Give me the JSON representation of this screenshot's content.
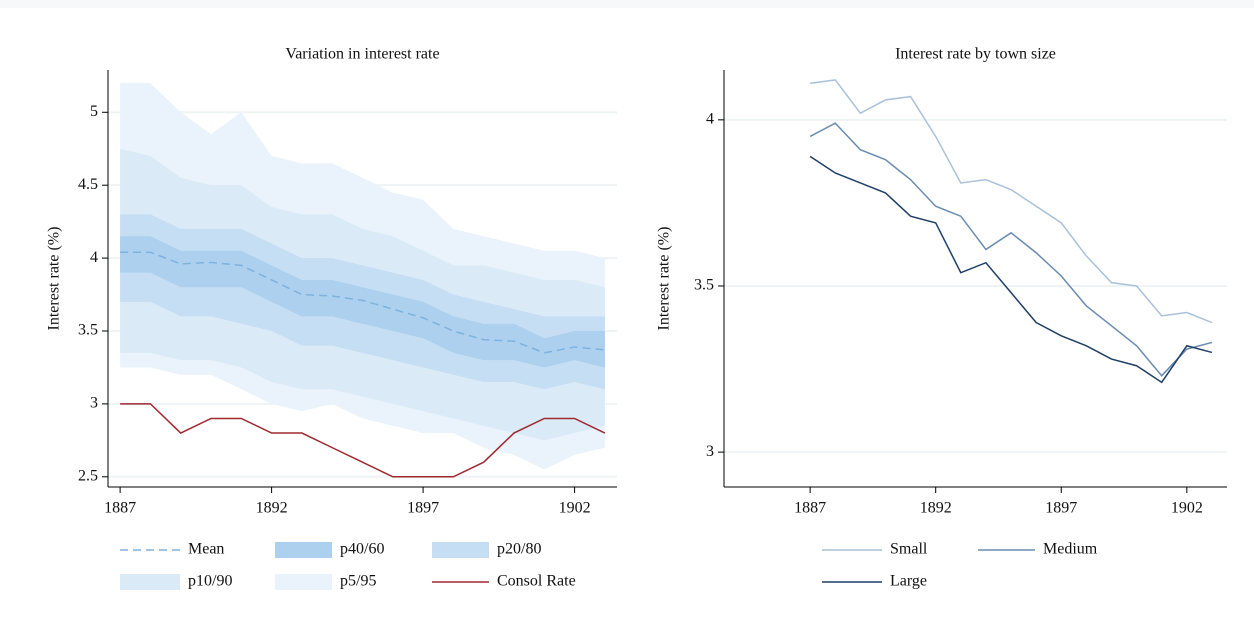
{
  "chart_data": [
    {
      "type": "line",
      "title": "Variation in interest rate",
      "y_label": "Interest rate (%)",
      "x": [
        1887,
        1888,
        1889,
        1890,
        1891,
        1892,
        1893,
        1894,
        1895,
        1896,
        1897,
        1898,
        1899,
        1900,
        1901,
        1902,
        1903
      ],
      "xlim": [
        1886.6,
        1903.4
      ],
      "xticks": [
        1887,
        1892,
        1897,
        1902
      ],
      "ylim": [
        2.43,
        5.29
      ],
      "yticks": [
        2.5,
        3,
        3.5,
        4,
        4.5,
        5
      ],
      "grid": true,
      "series": [
        {
          "name": "Mean",
          "color": "#7fb2dd",
          "dash": true,
          "values": [
            4.04,
            4.04,
            3.96,
            3.97,
            3.95,
            3.85,
            3.75,
            3.74,
            3.71,
            3.65,
            3.59,
            3.5,
            3.44,
            3.43,
            3.35,
            3.39,
            3.37
          ]
        },
        {
          "name": "p40/60",
          "color": "#acd0ee",
          "upper": [
            4.15,
            4.15,
            4.05,
            4.05,
            4.05,
            3.95,
            3.85,
            3.85,
            3.8,
            3.75,
            3.7,
            3.6,
            3.55,
            3.55,
            3.45,
            3.5,
            3.5
          ],
          "lower": [
            3.9,
            3.9,
            3.8,
            3.8,
            3.8,
            3.7,
            3.6,
            3.6,
            3.55,
            3.5,
            3.45,
            3.35,
            3.3,
            3.3,
            3.25,
            3.3,
            3.25
          ]
        },
        {
          "name": "p20/80",
          "color": "#c6def3",
          "upper": [
            4.3,
            4.3,
            4.2,
            4.2,
            4.2,
            4.1,
            4.0,
            4.0,
            3.95,
            3.9,
            3.85,
            3.75,
            3.7,
            3.65,
            3.6,
            3.6,
            3.6
          ],
          "lower": [
            3.7,
            3.7,
            3.6,
            3.6,
            3.55,
            3.5,
            3.4,
            3.4,
            3.35,
            3.3,
            3.25,
            3.2,
            3.15,
            3.15,
            3.1,
            3.15,
            3.1
          ]
        },
        {
          "name": "p10/90",
          "color": "#dbeaf7",
          "upper": [
            4.75,
            4.7,
            4.55,
            4.5,
            4.5,
            4.35,
            4.3,
            4.3,
            4.2,
            4.15,
            4.05,
            3.95,
            3.95,
            3.9,
            3.85,
            3.85,
            3.8
          ],
          "lower": [
            3.35,
            3.35,
            3.3,
            3.3,
            3.25,
            3.15,
            3.1,
            3.1,
            3.05,
            3.0,
            2.95,
            2.9,
            2.85,
            2.8,
            2.75,
            2.8,
            2.85
          ]
        },
        {
          "name": "p5/95",
          "color": "#eaf3fb",
          "upper": [
            5.2,
            5.2,
            5.0,
            4.85,
            5.0,
            4.7,
            4.65,
            4.65,
            4.55,
            4.45,
            4.4,
            4.2,
            4.15,
            4.1,
            4.05,
            4.05,
            4.0
          ],
          "lower": [
            3.25,
            3.25,
            3.2,
            3.2,
            3.1,
            3.0,
            2.95,
            3.0,
            2.9,
            2.85,
            2.8,
            2.8,
            2.7,
            2.65,
            2.55,
            2.65,
            2.7
          ]
        },
        {
          "name": "Consol Rate",
          "color": "#a0282f",
          "values": [
            3.0,
            3.0,
            2.8,
            2.9,
            2.9,
            2.8,
            2.8,
            2.7,
            2.6,
            2.5,
            2.5,
            2.5,
            2.6,
            2.8,
            2.9,
            2.9,
            2.8
          ]
        }
      ]
    },
    {
      "type": "line",
      "title": "Interest rate by town size",
      "y_label": "Interest rate (%)",
      "x": [
        1887,
        1888,
        1889,
        1890,
        1891,
        1892,
        1893,
        1894,
        1895,
        1896,
        1897,
        1898,
        1899,
        1900,
        1901,
        1902,
        1903
      ],
      "xlim": [
        1883.57,
        1903.6
      ],
      "xticks": [
        1887,
        1892,
        1897,
        1902
      ],
      "ylim": [
        2.895,
        4.15
      ],
      "yticks": [
        3,
        3.5,
        4
      ],
      "grid": true,
      "series": [
        {
          "name": "Small",
          "color": "#a9c1d9",
          "values": [
            4.11,
            4.12,
            4.02,
            4.06,
            4.07,
            3.95,
            3.81,
            3.82,
            3.79,
            3.74,
            3.69,
            3.59,
            3.51,
            3.5,
            3.41,
            3.42,
            3.39
          ]
        },
        {
          "name": "Medium",
          "color": "#6a8cb0",
          "values": [
            3.95,
            3.99,
            3.91,
            3.88,
            3.82,
            3.74,
            3.71,
            3.61,
            3.66,
            3.6,
            3.53,
            3.44,
            3.38,
            3.32,
            3.23,
            3.31,
            3.33
          ]
        },
        {
          "name": "Large",
          "color": "#1f3f66",
          "values": [
            3.89,
            3.84,
            3.81,
            3.78,
            3.71,
            3.69,
            3.54,
            3.57,
            3.48,
            3.39,
            3.35,
            3.32,
            3.28,
            3.26,
            3.21,
            3.32,
            3.3
          ]
        }
      ]
    }
  ]
}
